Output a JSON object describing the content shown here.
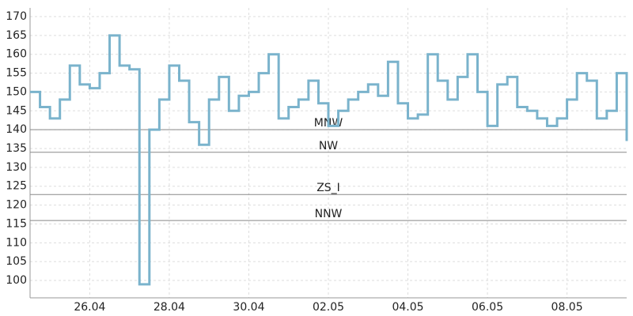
{
  "chart_data": {
    "type": "line",
    "categories": [
      null,
      null,
      null,
      null,
      null,
      null,
      "26.04",
      null,
      null,
      null,
      null,
      null,
      null,
      null,
      "28.04",
      null,
      null,
      null,
      null,
      null,
      null,
      null,
      "30.04",
      null,
      null,
      null,
      null,
      null,
      null,
      null,
      "02.05",
      null,
      null,
      null,
      null,
      null,
      null,
      null,
      "04.05",
      null,
      null,
      null,
      null,
      null,
      null,
      null,
      "06.05",
      null,
      null,
      null,
      null,
      null,
      null,
      null,
      "08.05",
      null,
      null,
      null,
      null,
      null,
      null
    ],
    "series": [
      {
        "color": "#7ab3cc",
        "values": [
          150,
          146,
          143,
          148,
          157,
          152,
          151,
          155,
          165,
          157,
          156,
          99,
          140,
          148,
          157,
          153,
          142,
          136,
          148,
          154,
          145,
          149,
          150,
          155,
          160,
          143,
          146,
          148,
          153,
          147,
          141,
          145,
          148,
          150,
          152,
          149,
          158,
          147,
          143,
          144,
          160,
          153,
          148,
          154,
          160,
          150,
          141,
          152,
          154,
          146,
          145,
          143,
          141,
          143,
          148,
          155,
          153,
          143,
          145,
          155,
          137
        ]
      }
    ],
    "reference_lines": [
      {
        "label": "MNW",
        "value": 140
      },
      {
        "label": "NW",
        "value": 134
      },
      {
        "label": "ZS_I",
        "value": 122.8
      },
      {
        "label": "NNW",
        "value": 115.9
      }
    ],
    "ylim": [
      95.4,
      172.3
    ],
    "yticks": [
      100,
      105,
      110,
      115,
      120,
      125,
      130,
      135,
      140,
      145,
      150,
      155,
      160,
      165,
      170
    ],
    "grid": true
  }
}
